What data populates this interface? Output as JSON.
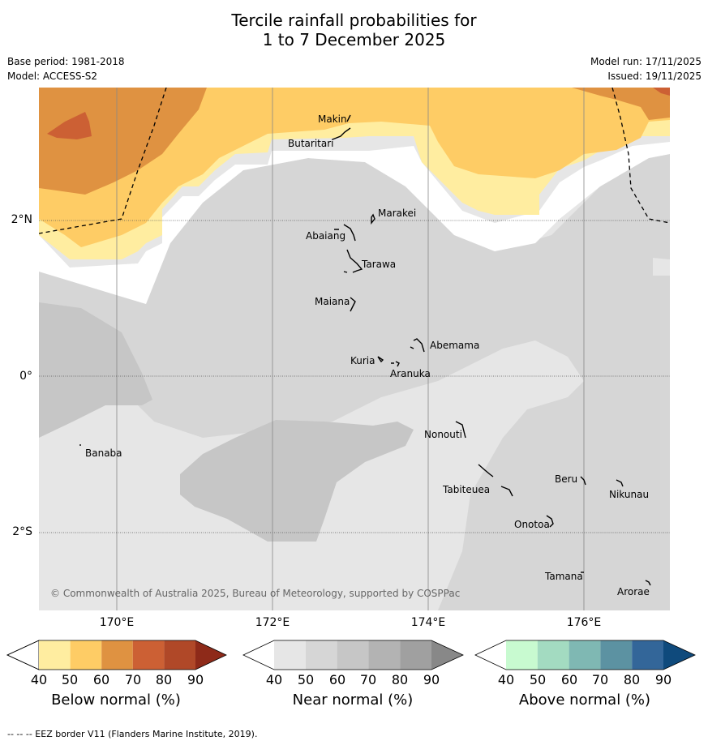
{
  "title": {
    "line1": "Tercile rainfall probabilities for",
    "line2": "1 to 7 December 2025"
  },
  "meta": {
    "base_period": "Base period: 1981-2018",
    "model": "Model: ACCESS-S2",
    "model_run": "Model run: 17/11/2025",
    "issued": "Issued: 19/11/2025"
  },
  "map": {
    "copyright": "© Commonwealth of Australia 2025, Bureau of Meteorology, supported by COSPPac",
    "lon_labels": [
      "170°E",
      "172°E",
      "174°E",
      "176°E"
    ],
    "lat_labels": [
      "2°N",
      "0°",
      "2°S"
    ],
    "places": [
      {
        "name": "Makin"
      },
      {
        "name": "Butaritari"
      },
      {
        "name": "Marakei"
      },
      {
        "name": "Abaiang"
      },
      {
        "name": "Tarawa"
      },
      {
        "name": "Maiana"
      },
      {
        "name": "Abemama"
      },
      {
        "name": "Kuria"
      },
      {
        "name": "Aranuka"
      },
      {
        "name": "Nonouti"
      },
      {
        "name": "Banaba"
      },
      {
        "name": "Beru"
      },
      {
        "name": "Tabiteuea"
      },
      {
        "name": "Nikunau"
      },
      {
        "name": "Onotoa"
      },
      {
        "name": "Tamana"
      },
      {
        "name": "Arorae"
      }
    ]
  },
  "colorbars": [
    {
      "caption": "Below normal (%)",
      "ticks": [
        "40",
        "50",
        "60",
        "70",
        "80",
        "90"
      ],
      "colors": [
        "#ffffff",
        "#ffeda0",
        "#fecc65",
        "#df9241",
        "#cc6034",
        "#b04828",
        "#8e2a19"
      ]
    },
    {
      "caption": "Near normal (%)",
      "ticks": [
        "40",
        "50",
        "60",
        "70",
        "80",
        "90"
      ],
      "colors": [
        "#ffffff",
        "#e6e6e6",
        "#d6d6d6",
        "#c6c6c6",
        "#b3b3b3",
        "#a0a0a0",
        "#888888"
      ]
    },
    {
      "caption": "Above normal (%)",
      "ticks": [
        "40",
        "50",
        "60",
        "70",
        "80",
        "90"
      ],
      "colors": [
        "#ffffff",
        "#c8fad0",
        "#a3dbc1",
        "#7fb8b3",
        "#5c92a2",
        "#336699",
        "#0f4a7c"
      ]
    }
  ],
  "footer": "-- -- -- EEZ border V11 (Flanders Marine Institute, 2019)."
}
